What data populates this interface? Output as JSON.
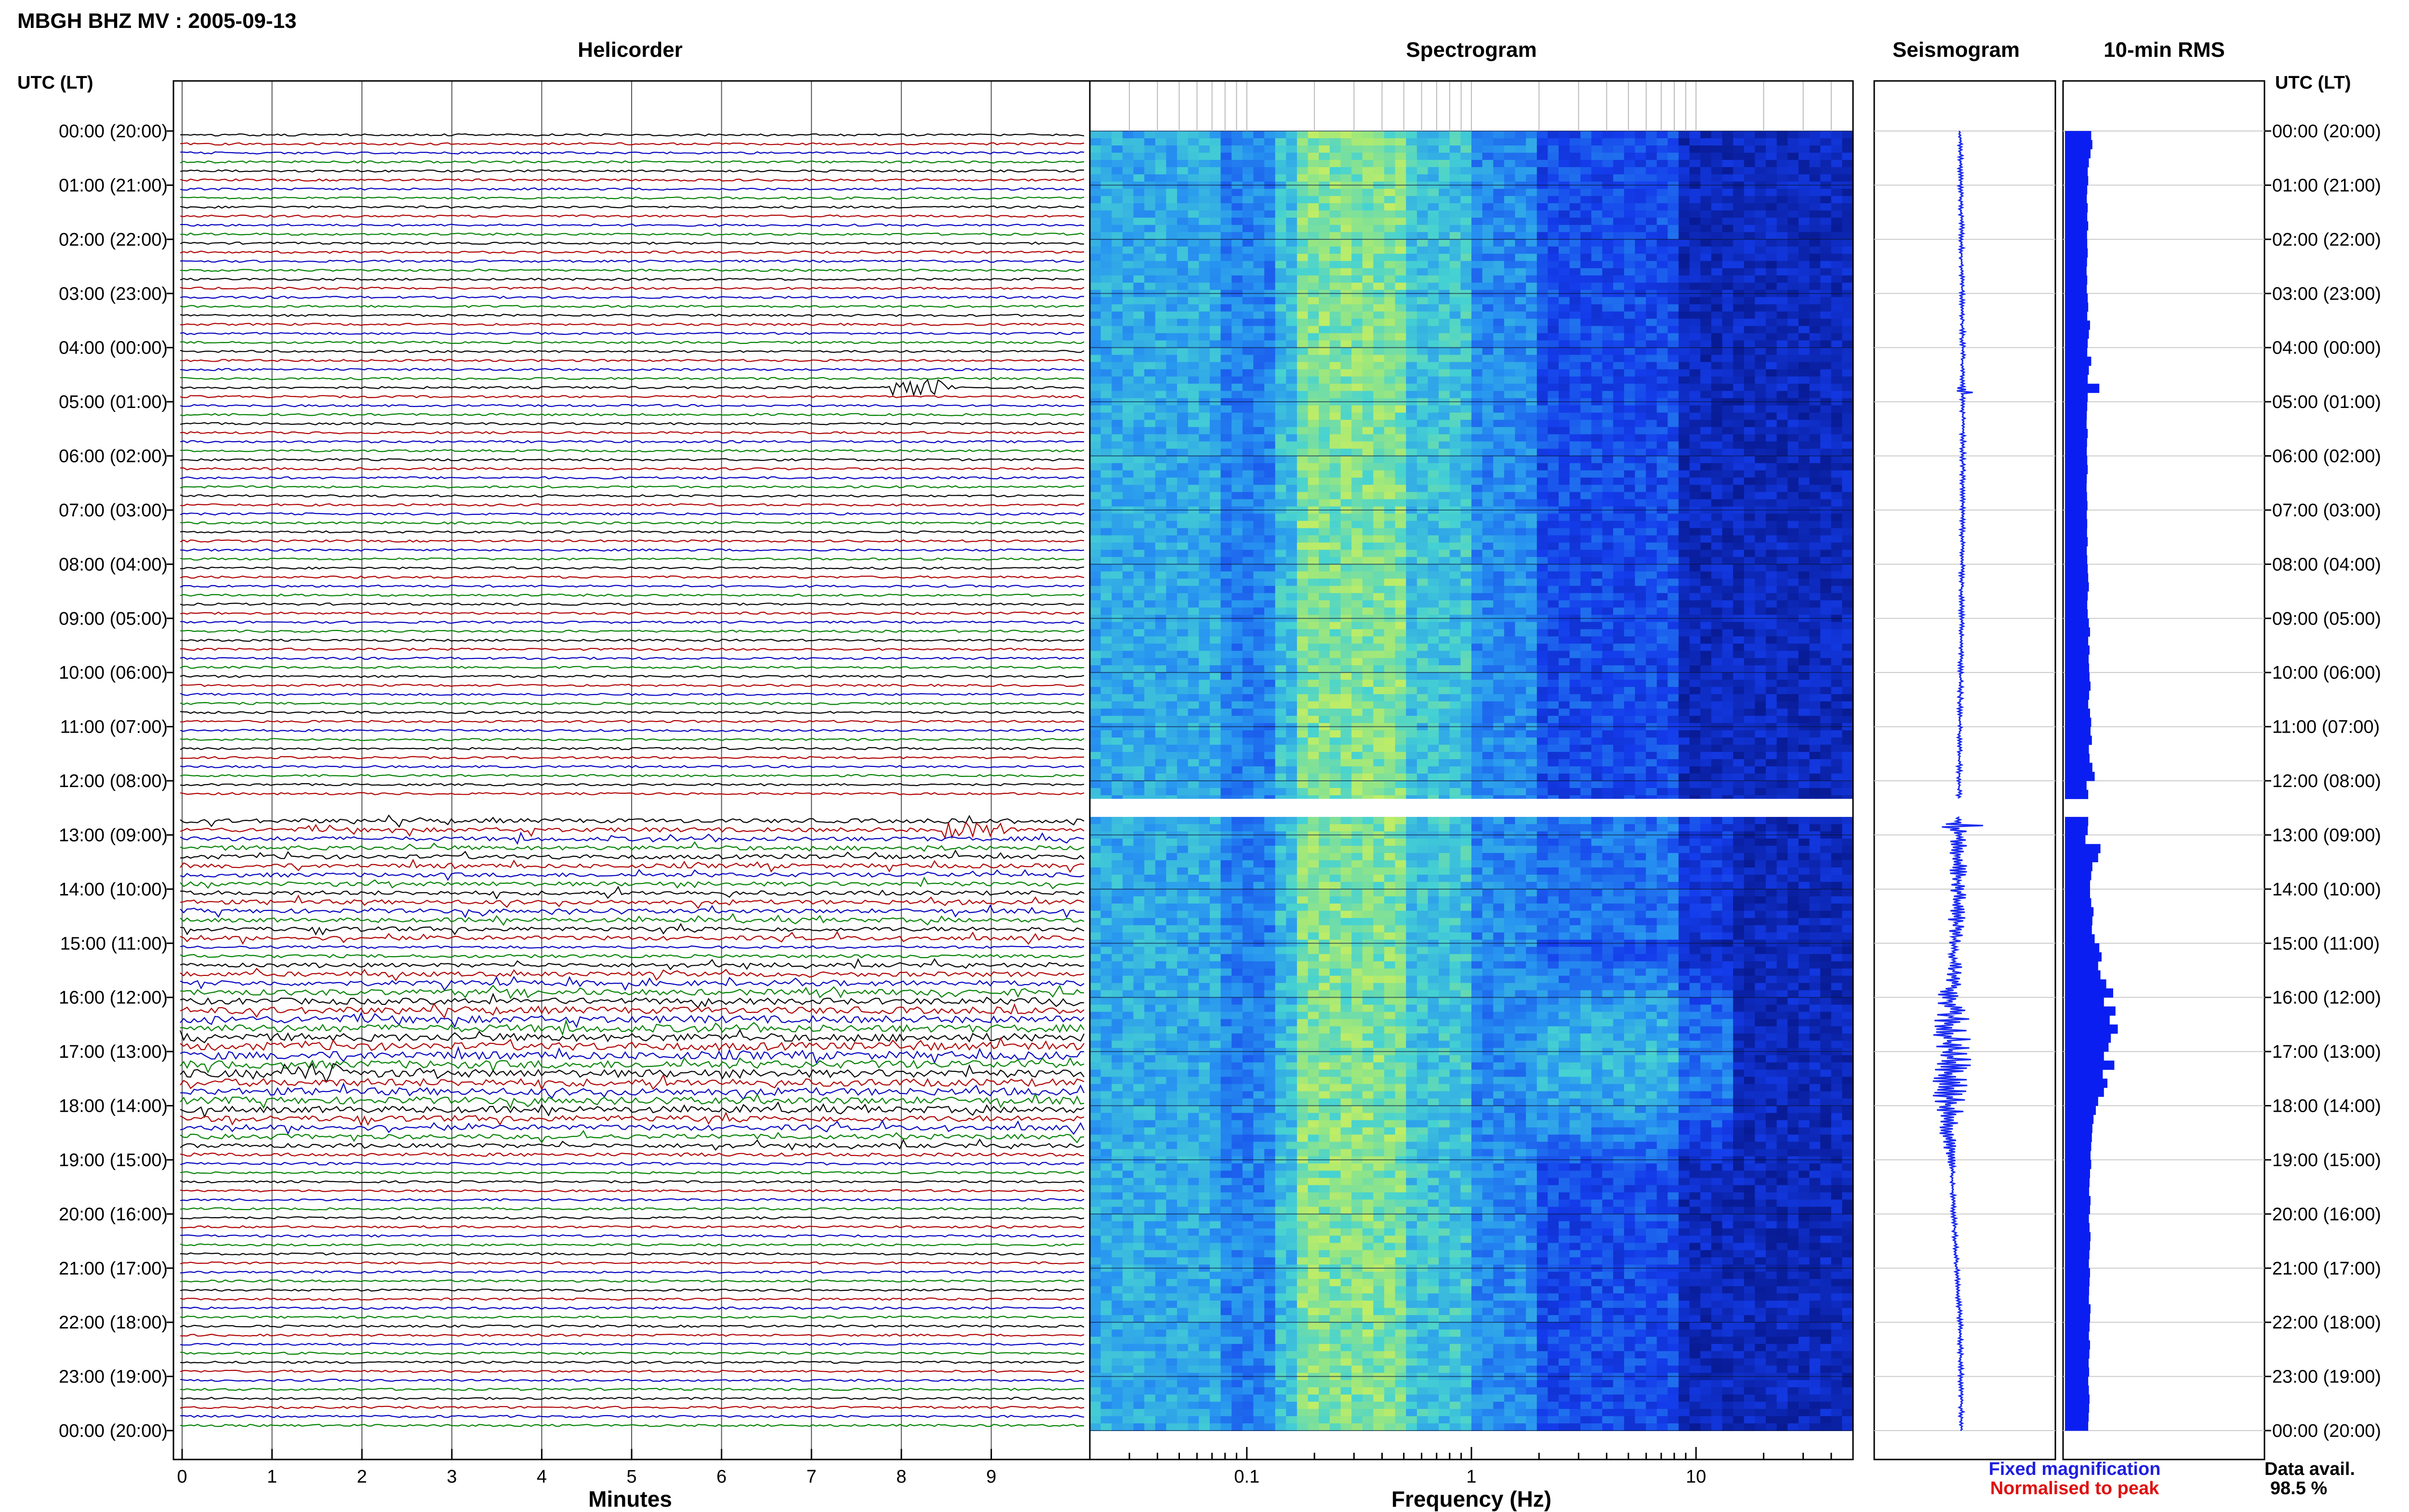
{
  "header": {
    "title": "MBGH BHZ MV : 2005-09-13",
    "utc_label_left": "UTC (LT)",
    "utc_label_right": "UTC (LT)"
  },
  "panels": {
    "helicorder": "Helicorder",
    "spectrogram": "Spectrogram",
    "seismogram": "Seismogram",
    "rms": "10-min RMS"
  },
  "hour_labels": [
    "00:00 (20:00)",
    "01:00 (21:00)",
    "02:00 (22:00)",
    "03:00 (23:00)",
    "04:00 (00:00)",
    "05:00 (01:00)",
    "06:00 (02:00)",
    "07:00 (03:00)",
    "08:00 (04:00)",
    "09:00 (05:00)",
    "10:00 (06:00)",
    "11:00 (07:00)",
    "12:00 (08:00)",
    "13:00 (09:00)",
    "14:00 (10:00)",
    "15:00 (11:00)",
    "16:00 (12:00)",
    "17:00 (13:00)",
    "18:00 (14:00)",
    "19:00 (15:00)",
    "20:00 (16:00)",
    "21:00 (17:00)",
    "22:00 (18:00)",
    "23:00 (19:00)",
    "00:00 (20:00)"
  ],
  "axes": {
    "minutes_label": "Minutes",
    "minute_ticks": [
      "0",
      "1",
      "2",
      "3",
      "4",
      "5",
      "6",
      "7",
      "8",
      "9"
    ],
    "frequency_label": "Frequency (Hz)",
    "frequency_ticks": [
      "0.1",
      "1",
      "10"
    ],
    "frequency_range_hz": [
      0.02,
      50
    ],
    "frequency_scale": "log"
  },
  "legend": {
    "fixed": "Fixed magnification",
    "normalised": "Normalised to peak",
    "fixed_color": "#1f1fe0",
    "normalised_color": "#e01010"
  },
  "data_avail": {
    "label": "Data avail.",
    "value": "98.5 %"
  },
  "colors": {
    "trace_cycle": [
      "#000000",
      "#b00000",
      "#0000c0",
      "#008000"
    ],
    "seismogram": "#1b2cf0",
    "rms_bar": "#0b1ef2",
    "spectro_low": "#0a1a8a",
    "spectro_mid": "#1d6ef0",
    "spectro_high": "#7fe0a0",
    "gridline": "#999999"
  },
  "chart_data": {
    "type": "heatmap",
    "time_range_utc": [
      "00:00",
      "24:00"
    ],
    "data_gap_utc": [
      "12:20",
      "12:40"
    ],
    "rms_10min_relative": [
      0.55,
      0.6,
      0.52,
      0.45,
      0.4,
      0.42,
      0.38,
      0.36,
      0.4,
      0.38,
      0.42,
      0.37,
      0.38,
      0.4,
      0.37,
      0.35,
      0.38,
      0.36,
      0.4,
      0.42,
      0.38,
      0.5,
      0.45,
      0.4,
      0.38,
      0.55,
      0.45,
      0.4,
      0.9,
      0.4,
      0.38,
      0.36,
      0.35,
      0.4,
      0.37,
      0.36,
      0.38,
      0.4,
      0.36,
      0.35,
      0.37,
      0.39,
      0.36,
      0.38,
      0.37,
      0.4,
      0.36,
      0.38,
      0.4,
      0.42,
      0.45,
      0.4,
      0.38,
      0.4,
      0.45,
      0.5,
      0.42,
      0.48,
      0.44,
      0.46,
      0.48,
      0.52,
      0.46,
      0.42,
      0.5,
      0.55,
      0.52,
      0.58,
      0.45,
      0.48,
      0.6,
      0.7,
      0.35,
      0.42,
      0.4,
      0.4,
      0.42,
      0.4,
      0.3,
      0.95,
      0.85,
      0.6,
      0.55,
      0.5,
      0.5,
      0.55,
      0.65,
      0.6,
      0.58,
      0.7,
      0.9,
      1.0,
      0.85,
      0.95,
      1.2,
      1.5,
      1.1,
      1.6,
      1.35,
      1.7,
      1.4,
      1.3,
      1.1,
      1.55,
      1.05,
      1.25,
      1.1,
      0.85,
      0.75,
      0.65,
      0.6,
      0.58,
      0.55,
      0.52,
      0.55,
      0.5,
      0.48,
      0.46,
      0.52,
      0.5,
      0.45,
      0.48,
      0.52,
      0.5,
      0.47,
      0.45,
      0.5,
      0.48,
      0.46,
      0.45,
      0.52,
      0.5,
      0.48,
      0.45,
      0.5,
      0.47,
      0.44,
      0.46,
      0.42,
      0.45,
      0.48,
      0.46,
      0.44,
      0.42
    ],
    "notable_events": [
      {
        "time_utc": "04:40",
        "minute": 8.2
      },
      {
        "time_utc": "12:50",
        "minute": 8.8
      },
      {
        "time_utc": "17:20",
        "minute": 1.5
      }
    ]
  }
}
